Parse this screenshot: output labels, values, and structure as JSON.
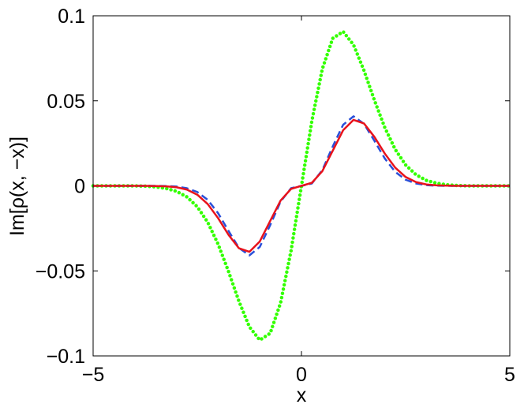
{
  "chart_data": {
    "type": "line",
    "xlabel": "x",
    "ylabel": "Im[ρ(x, −x)]",
    "x": [
      -5,
      -4.75,
      -4.5,
      -4.25,
      -4,
      -3.75,
      -3.5,
      -3.25,
      -3,
      -2.75,
      -2.5,
      -2.25,
      -2,
      -1.75,
      -1.5,
      -1.25,
      -1,
      -0.75,
      -0.5,
      -0.25,
      0,
      0.25,
      0.5,
      0.75,
      1,
      1.25,
      1.5,
      1.75,
      2,
      2.25,
      2.5,
      2.75,
      3,
      3.25,
      3.5,
      3.75,
      4,
      4.25,
      4.5,
      4.75,
      5
    ],
    "series": [
      {
        "color": "#33ff00",
        "style": "dotted",
        "values": [
          0,
          0,
          0,
          0,
          0,
          -0.0002,
          -0.0006,
          -0.0015,
          -0.0032,
          -0.0065,
          -0.0123,
          -0.0214,
          -0.0343,
          -0.0504,
          -0.0679,
          -0.0829,
          -0.0907,
          -0.0867,
          -0.0687,
          -0.0382,
          0,
          0.0382,
          0.0687,
          0.0867,
          0.0907,
          0.0829,
          0.0679,
          0.0504,
          0.0343,
          0.0214,
          0.0123,
          0.0065,
          0.0032,
          0.0015,
          0.0006,
          0.0002,
          0,
          0,
          0,
          0,
          0
        ]
      },
      {
        "color": "#2a4fd8",
        "style": "dashed",
        "values": [
          0,
          0,
          0,
          0,
          0,
          0,
          0,
          -0.0001,
          -0.0004,
          -0.0014,
          -0.0036,
          -0.0082,
          -0.0161,
          -0.0265,
          -0.0365,
          -0.0409,
          -0.0359,
          -0.0231,
          -0.0092,
          -0.0014,
          0,
          0.0014,
          0.0092,
          0.0231,
          0.0359,
          0.0409,
          0.0365,
          0.0265,
          0.0161,
          0.0082,
          0.0036,
          0.0014,
          0.0004,
          0.0001,
          0,
          0,
          0,
          0,
          0,
          0,
          0
        ]
      },
      {
        "color": "#e8121b",
        "style": "solid",
        "values": [
          0,
          0,
          0,
          0,
          0,
          0,
          -0.0001,
          -0.0003,
          -0.0008,
          -0.0022,
          -0.0052,
          -0.0107,
          -0.019,
          -0.0288,
          -0.0367,
          -0.0388,
          -0.0327,
          -0.0206,
          -0.0086,
          -0.0018,
          0,
          0.0018,
          0.0086,
          0.0206,
          0.0327,
          0.0388,
          0.0367,
          0.0288,
          0.019,
          0.0107,
          0.0052,
          0.0022,
          0.0008,
          0.0003,
          0.0001,
          0,
          0,
          0,
          0,
          0,
          0
        ]
      }
    ],
    "xlim": [
      -5,
      5
    ],
    "xticks": [
      {
        "value": -5,
        "label": "−5"
      },
      0,
      5
    ],
    "ylim": [
      -0.1,
      0.1
    ],
    "yticks": [
      {
        "value": -0.1,
        "label": "−0.1"
      },
      {
        "value": -0.05,
        "label": "−0.05"
      },
      0,
      0.05,
      0.1
    ],
    "grid": false
  }
}
